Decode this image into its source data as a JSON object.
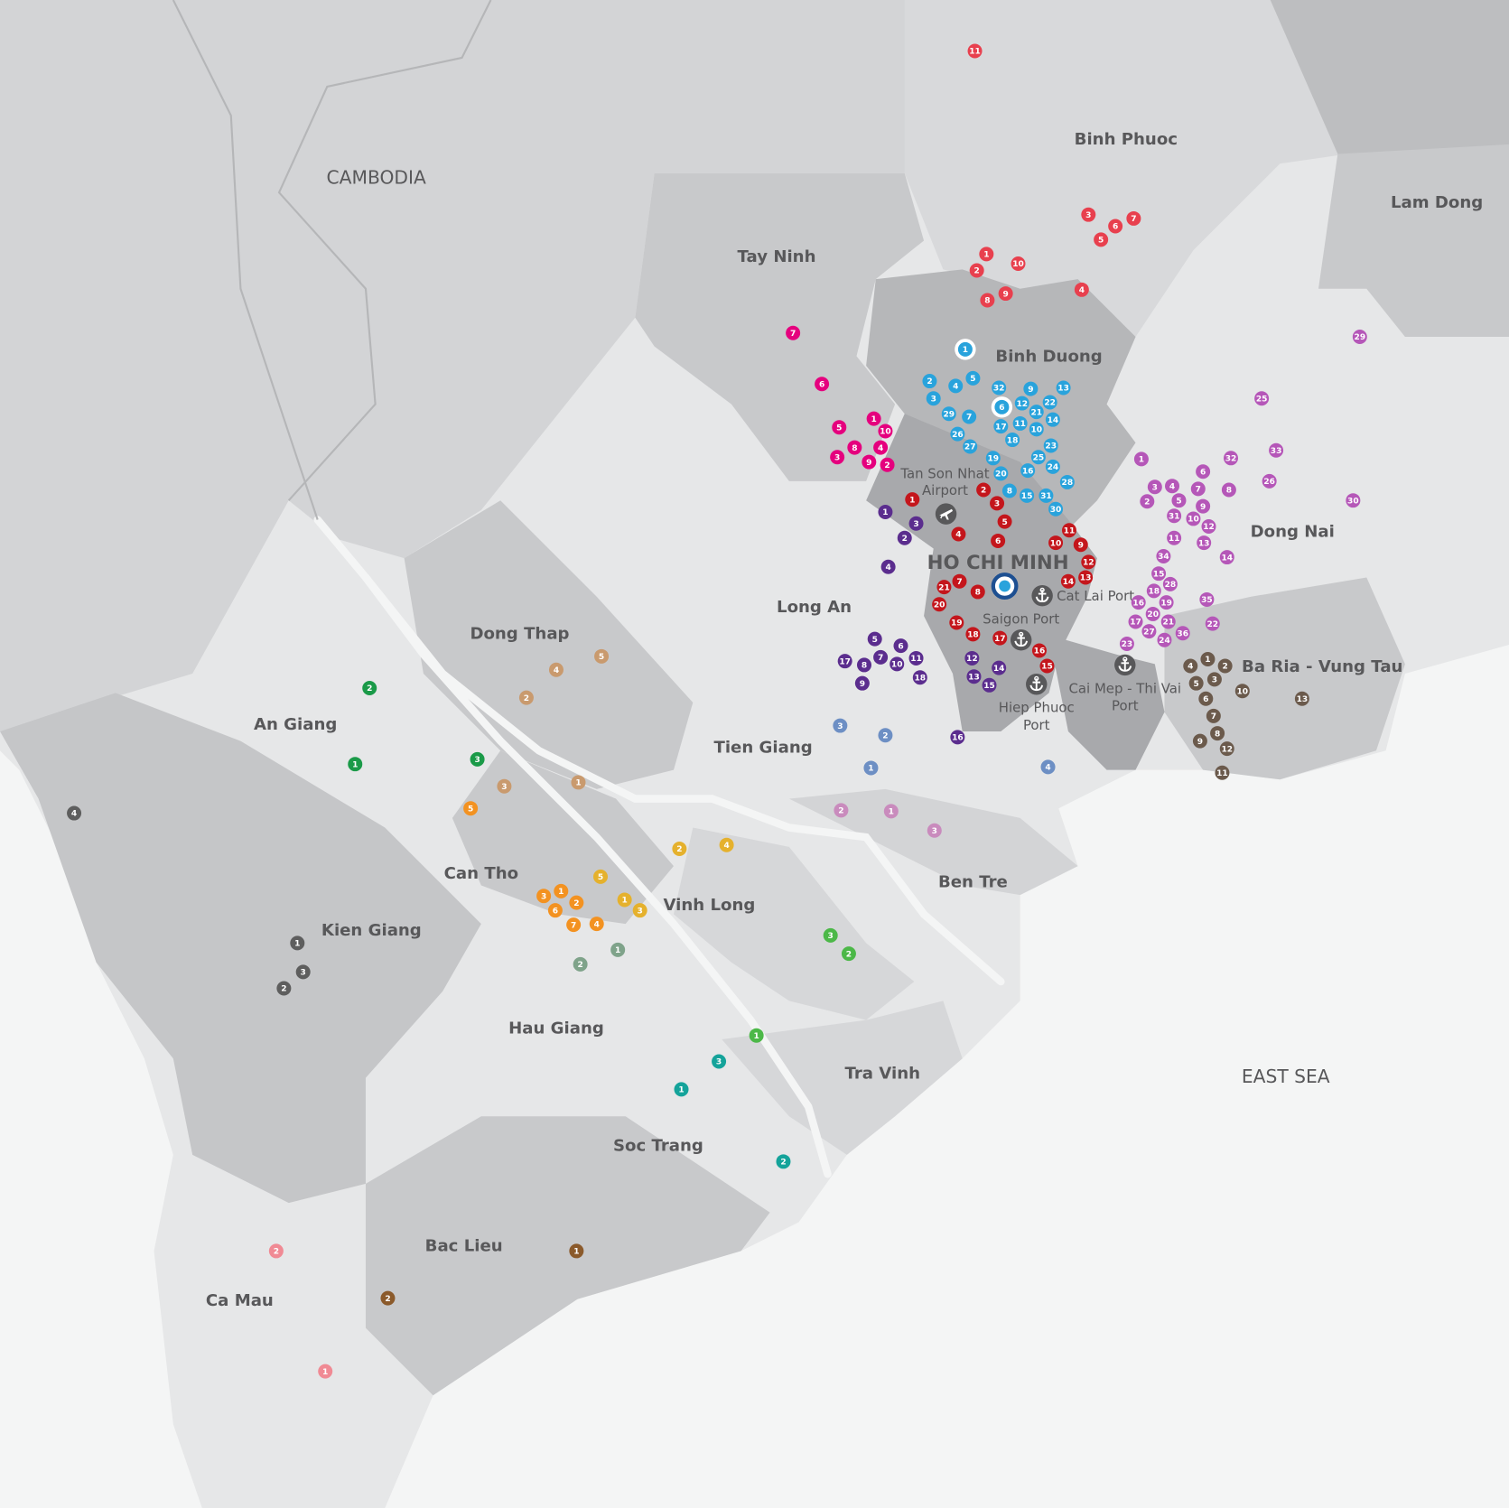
{
  "labels": {
    "cambodia": "CAMBODIA",
    "east_sea": "EAST SEA",
    "ho_chi_minh": "HO CHI MINH",
    "provinces": {
      "binh_phuoc": "Binh Phuoc",
      "lam_dong": "Lam Dong",
      "tay_ninh": "Tay Ninh",
      "binh_duong": "Binh Duong",
      "dong_nai": "Dong Nai",
      "long_an": "Long An",
      "dong_thap": "Dong Thap",
      "an_giang": "An Giang",
      "tien_giang": "Tien Giang",
      "ba_ria_vung_tau": "Ba Ria - Vung Tau",
      "ben_tre": "Ben Tre",
      "can_tho": "Can Tho",
      "vinh_long": "Vinh Long",
      "kien_giang": "Kien Giang",
      "hau_giang": "Hau Giang",
      "tra_vinh": "Tra Vinh",
      "soc_trang": "Soc Trang",
      "bac_lieu": "Bac Lieu",
      "ca_mau": "Ca Mau"
    },
    "facilities": {
      "airport_line1": "Tan Son Nhat",
      "airport_line2": "Airport",
      "cat_lai": "Cat Lai Port",
      "saigon": "Saigon Port",
      "hiep_phuoc_line1": "Hiep Phuoc",
      "hiep_phuoc_line2": "Port",
      "cai_mep_line1": "Cai Mep - Thi Vai",
      "cai_mep_line2": "Port"
    }
  },
  "icons": {
    "airport": "airplane-icon",
    "port": "anchor-icon",
    "city_center": "target-icon"
  },
  "marker_groups": [
    {
      "province": "Binh Phuoc",
      "color": "#e8404e",
      "labels": [
        "11",
        "3",
        "6",
        "7",
        "5",
        "1",
        "10",
        "2",
        "9",
        "8",
        "4"
      ]
    },
    {
      "province": "Tay Ninh",
      "color": "#e5007e",
      "labels": [
        "7",
        "6",
        "5",
        "1",
        "10",
        "8",
        "4",
        "3",
        "9",
        "2"
      ]
    },
    {
      "province": "Binh Duong",
      "color": "#29a3dc",
      "labels": [
        "1",
        "2",
        "4",
        "5",
        "3",
        "29",
        "7",
        "26",
        "27",
        "32",
        "9",
        "13",
        "6",
        "12",
        "22",
        "21",
        "14",
        "17",
        "11",
        "10",
        "18",
        "23",
        "25",
        "24",
        "19",
        "20",
        "16",
        "28",
        "8",
        "15",
        "31",
        "30"
      ],
      "highlighted": [
        "1",
        "6"
      ]
    },
    {
      "province": "Ho Chi Minh",
      "color": "#c4161c",
      "labels": [
        "1",
        "2",
        "3",
        "5",
        "4",
        "6",
        "11",
        "10",
        "9",
        "12",
        "13",
        "14",
        "7",
        "21",
        "8",
        "20",
        "19",
        "18",
        "17",
        "16",
        "15"
      ]
    },
    {
      "province": "Long An",
      "color": "#5b2d8e",
      "labels": [
        "1",
        "3",
        "2",
        "4",
        "5",
        "6",
        "7",
        "11",
        "10",
        "17",
        "8",
        "18",
        "9",
        "12",
        "13",
        "14",
        "15",
        "16"
      ]
    },
    {
      "province": "Dong Nai",
      "color": "#b557b8",
      "labels": [
        "1",
        "32",
        "33",
        "6",
        "26",
        "3",
        "4",
        "7",
        "8",
        "2",
        "5",
        "9",
        "31",
        "10",
        "12",
        "11",
        "13",
        "34",
        "14",
        "15",
        "28",
        "18",
        "19",
        "16",
        "35",
        "20",
        "17",
        "21",
        "22",
        "27",
        "24",
        "36",
        "23",
        "29",
        "25",
        "30"
      ]
    },
    {
      "province": "Ba Ria - Vung Tau",
      "color": "#6b5a4c",
      "labels": [
        "1",
        "4",
        "2",
        "3",
        "5",
        "10",
        "13",
        "6",
        "7",
        "8",
        "9",
        "12",
        "11"
      ]
    },
    {
      "province": "Tien Giang",
      "color": "#6d8fc4",
      "labels": [
        "3",
        "2",
        "1",
        "4"
      ]
    },
    {
      "province": "Ben Tre",
      "color": "#c98bbd",
      "labels": [
        "2",
        "1",
        "3"
      ]
    },
    {
      "province": "Dong Thap",
      "color": "#c99a6e",
      "labels": [
        "5",
        "4",
        "2",
        "3",
        "1"
      ]
    },
    {
      "province": "An Giang",
      "color": "#1a9a48",
      "labels": [
        "2",
        "1",
        "3"
      ]
    },
    {
      "province": "Kien Giang",
      "color": "#5e5e5e",
      "labels": [
        "4",
        "1",
        "3",
        "2"
      ]
    },
    {
      "province": "Can Tho",
      "color": "#f39221",
      "labels": [
        "5",
        "1",
        "3",
        "2",
        "6",
        "7",
        "4"
      ]
    },
    {
      "province": "Vinh Long",
      "color": "#e5b12d",
      "labels": [
        "2",
        "4",
        "5",
        "1",
        "3"
      ]
    },
    {
      "province": "Hau Giang",
      "color": "#7fa38a",
      "labels": [
        "1",
        "2"
      ]
    },
    {
      "province": "Tra Vinh",
      "color": "#4cb848",
      "labels": [
        "3",
        "2",
        "1"
      ]
    },
    {
      "province": "Soc Trang",
      "color": "#14a39a",
      "labels": [
        "3",
        "1",
        "2"
      ]
    },
    {
      "province": "Bac Lieu",
      "color": "#8b5a2b",
      "labels": [
        "1",
        "2"
      ]
    },
    {
      "province": "Ca Mau",
      "color": "#f08a94",
      "labels": [
        "2",
        "1"
      ]
    }
  ],
  "colors": {
    "sea": "#f4f5f5",
    "land_light": "#e6e7e8",
    "land_mid": "#d6d7d9",
    "land_dark": "#c5c6c8",
    "hcm": "#a8a9ac",
    "city_center": "#1d4f91",
    "icon": "#58585a"
  }
}
